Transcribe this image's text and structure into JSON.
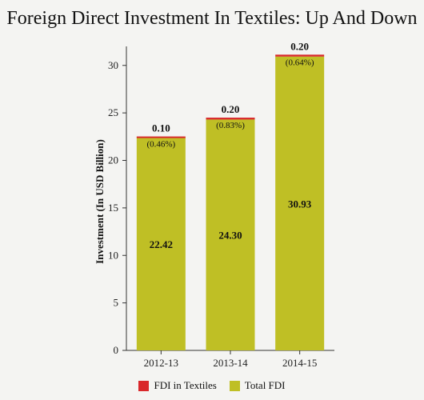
{
  "chart_data": {
    "type": "bar",
    "stacked": true,
    "title": "Foreign Direct Investment In Textiles: Up And Down",
    "ylabel": "Investment (In USD Billion)",
    "xlabel": "",
    "ylim": [
      0,
      32
    ],
    "yticks": [
      "0",
      "5",
      "10",
      "15",
      "20",
      "25",
      "30"
    ],
    "categories": [
      "2012-13",
      "2013-14",
      "2014-15"
    ],
    "series": [
      {
        "name": "Total FDI",
        "color": "#bfbf25",
        "values": [
          22.42,
          24.3,
          30.93
        ],
        "labels": [
          "22.42",
          "24.30",
          "30.93"
        ]
      },
      {
        "name": "FDI in Textiles",
        "color": "#d9282b",
        "values": [
          0.1,
          0.2,
          0.2
        ],
        "labels": [
          "0.10",
          "0.20",
          "0.20"
        ]
      }
    ],
    "textile_share_labels": [
      "(0.46%)",
      "(0.83%)",
      "(0.64%)"
    ],
    "legend": [
      {
        "name": "FDI in Textiles",
        "color": "#d9282b"
      },
      {
        "name": "Total FDI",
        "color": "#bfbf25"
      }
    ],
    "legend_position": "bottom",
    "grid": false
  }
}
